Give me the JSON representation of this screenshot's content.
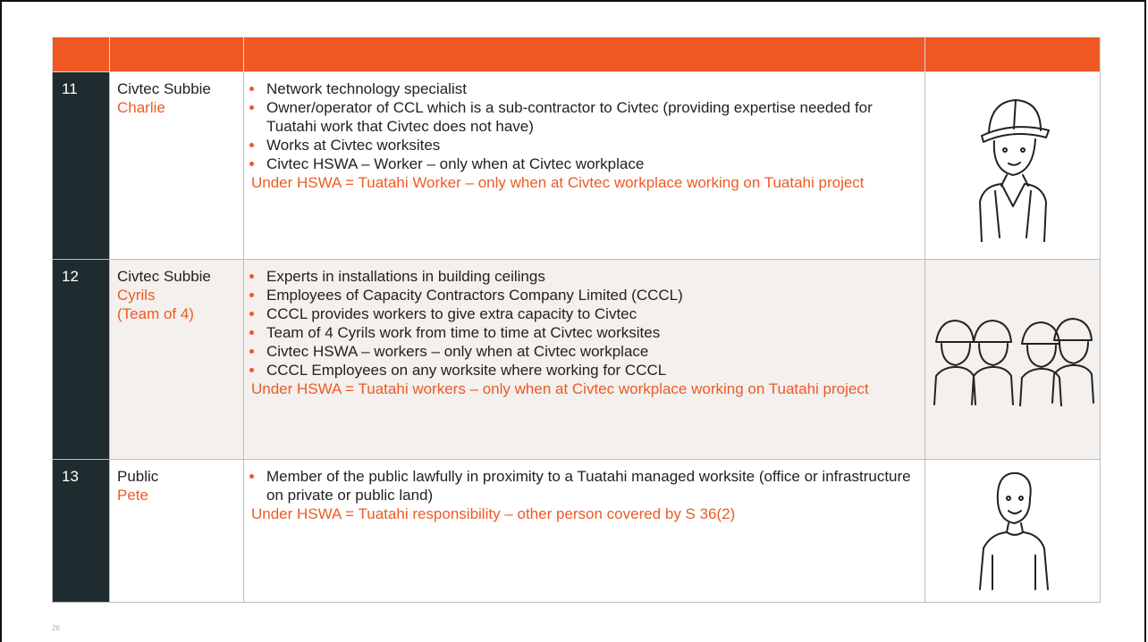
{
  "table": {
    "rows": [
      {
        "number": "11",
        "role": "Civtec Subbie",
        "names": [
          "Charlie"
        ],
        "bullets": [
          "Network technology specialist",
          "Owner/operator of CCL which is a sub-contractor to Civtec (providing expertise needed for Tuatahi work that Civtec does not have)",
          "Works at Civtec worksites",
          "Civtec HSWA – Worker – only when at Civtec workplace"
        ],
        "note": "Under HSWA = Tuatahi Worker – only when at Civtec workplace working on Tuatahi project"
      },
      {
        "number": "12",
        "role": "Civtec Subbie",
        "names": [
          "Cyrils",
          "(Team of 4)"
        ],
        "bullets": [
          "Experts in installations in building ceilings",
          "Employees of Capacity Contractors Company Limited (CCCL)",
          "CCCL provides workers to give extra capacity to Civtec",
          "Team of 4 Cyrils work from time to time at Civtec worksites",
          "Civtec HSWA – workers – only when at Civtec workplace",
          "CCCL Employees on any worksite where working for CCCL"
        ],
        "note": "Under HSWA = Tuatahi workers – only when at Civtec workplace working on Tuatahi project"
      },
      {
        "number": "13",
        "role": "Public",
        "names": [
          "Pete"
        ],
        "bullets": [
          "Member of the public lawfully in proximity to a Tuatahi managed worksite (office or infrastructure on private or public land)"
        ],
        "note": "Under HSWA = Tuatahi responsibility – other person covered by S 36(2)"
      }
    ]
  },
  "footer": {
    "page_number": "26"
  }
}
